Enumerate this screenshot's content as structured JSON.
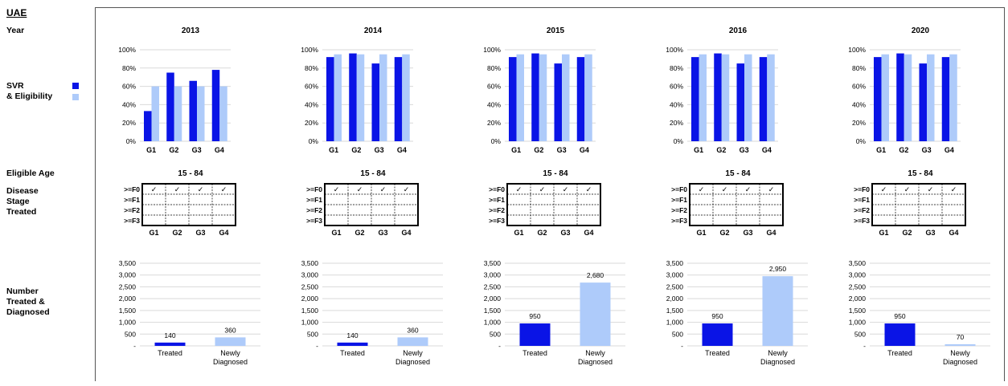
{
  "labels": {
    "country": "UAE",
    "year": "Year",
    "svr": "SVR",
    "eligibility": "& Eligibility",
    "eligible_age": "Eligible Age",
    "disease_stage": [
      "Disease",
      "Stage",
      "Treated"
    ],
    "number_treated": [
      "Number",
      "Treated &",
      "Diagnosed"
    ]
  },
  "colors": {
    "svr": "#0a14e6",
    "eligibility": "#aecbfa",
    "grid": "#d9d9d9"
  },
  "stage_rows": [
    ">=F0",
    ">=F1",
    ">=F2",
    ">=F3"
  ],
  "check_mark": "✓",
  "chart_data": [
    {
      "type": "bar",
      "title": "2013",
      "categories": [
        "G1",
        "G2",
        "G3",
        "G4"
      ],
      "series": [
        {
          "name": "SVR",
          "values": [
            33,
            75,
            66,
            78
          ]
        },
        {
          "name": "Eligibility",
          "values": [
            60,
            60,
            60,
            60
          ]
        }
      ],
      "yticks": [
        "0%",
        "20%",
        "40%",
        "60%",
        "80%",
        "100%"
      ],
      "ylim": [
        0,
        100
      ],
      "eligible_age": "15 - 84",
      "stages": [
        [
          true,
          true,
          true,
          true
        ],
        [
          false,
          false,
          false,
          false
        ],
        [
          false,
          false,
          false,
          false
        ],
        [
          false,
          false,
          false,
          false
        ]
      ],
      "counts": {
        "categories": [
          "Treated",
          "Newly\nDiagnosed"
        ],
        "values": [
          140,
          360
        ],
        "labels": [
          "140",
          "360"
        ]
      }
    },
    {
      "type": "bar",
      "title": "2014",
      "categories": [
        "G1",
        "G2",
        "G3",
        "G4"
      ],
      "series": [
        {
          "name": "SVR",
          "values": [
            92,
            96,
            85,
            92
          ]
        },
        {
          "name": "Eligibility",
          "values": [
            95,
            95,
            95,
            95
          ]
        }
      ],
      "yticks": [
        "0%",
        "20%",
        "40%",
        "60%",
        "80%",
        "100%"
      ],
      "ylim": [
        0,
        100
      ],
      "eligible_age": "15 - 84",
      "stages": [
        [
          true,
          true,
          true,
          true
        ],
        [
          false,
          false,
          false,
          false
        ],
        [
          false,
          false,
          false,
          false
        ],
        [
          false,
          false,
          false,
          false
        ]
      ],
      "counts": {
        "categories": [
          "Treated",
          "Newly\nDiagnosed"
        ],
        "values": [
          140,
          360
        ],
        "labels": [
          "140",
          "360"
        ]
      }
    },
    {
      "type": "bar",
      "title": "2015",
      "categories": [
        "G1",
        "G2",
        "G3",
        "G4"
      ],
      "series": [
        {
          "name": "SVR",
          "values": [
            92,
            96,
            85,
            92
          ]
        },
        {
          "name": "Eligibility",
          "values": [
            95,
            95,
            95,
            95
          ]
        }
      ],
      "yticks": [
        "0%",
        "20%",
        "40%",
        "60%",
        "80%",
        "100%"
      ],
      "ylim": [
        0,
        100
      ],
      "eligible_age": "15 - 84",
      "stages": [
        [
          true,
          true,
          true,
          true
        ],
        [
          false,
          false,
          false,
          false
        ],
        [
          false,
          false,
          false,
          false
        ],
        [
          false,
          false,
          false,
          false
        ]
      ],
      "counts": {
        "categories": [
          "Treated",
          "Newly\nDiagnosed"
        ],
        "values": [
          950,
          2680
        ],
        "labels": [
          "950",
          "2,680"
        ]
      }
    },
    {
      "type": "bar",
      "title": "2016",
      "categories": [
        "G1",
        "G2",
        "G3",
        "G4"
      ],
      "series": [
        {
          "name": "SVR",
          "values": [
            92,
            96,
            85,
            92
          ]
        },
        {
          "name": "Eligibility",
          "values": [
            95,
            95,
            95,
            95
          ]
        }
      ],
      "yticks": [
        "0%",
        "20%",
        "40%",
        "60%",
        "80%",
        "100%"
      ],
      "ylim": [
        0,
        100
      ],
      "eligible_age": "15 - 84",
      "stages": [
        [
          true,
          true,
          true,
          true
        ],
        [
          false,
          false,
          false,
          false
        ],
        [
          false,
          false,
          false,
          false
        ],
        [
          false,
          false,
          false,
          false
        ]
      ],
      "counts": {
        "categories": [
          "Treated",
          "Newly\nDiagnosed"
        ],
        "values": [
          950,
          2950
        ],
        "labels": [
          "950",
          "2,950"
        ]
      }
    },
    {
      "type": "bar",
      "title": "2020",
      "categories": [
        "G1",
        "G2",
        "G3",
        "G4"
      ],
      "series": [
        {
          "name": "SVR",
          "values": [
            92,
            96,
            85,
            92
          ]
        },
        {
          "name": "Eligibility",
          "values": [
            95,
            95,
            95,
            95
          ]
        }
      ],
      "yticks": [
        "0%",
        "20%",
        "40%",
        "60%",
        "80%",
        "100%"
      ],
      "ylim": [
        0,
        100
      ],
      "eligible_age": "15 - 84",
      "stages": [
        [
          true,
          true,
          true,
          true
        ],
        [
          false,
          false,
          false,
          false
        ],
        [
          false,
          false,
          false,
          false
        ],
        [
          false,
          false,
          false,
          false
        ]
      ],
      "counts": {
        "categories": [
          "Treated",
          "Newly\nDiagnosed"
        ],
        "values": [
          950,
          70
        ],
        "labels": [
          "950",
          "70"
        ]
      }
    }
  ],
  "count_axis": {
    "ticks": [
      "-",
      "500",
      "1,000",
      "1,500",
      "2,000",
      "2,500",
      "3,000",
      "3,500"
    ],
    "ylim": [
      0,
      3500
    ]
  }
}
